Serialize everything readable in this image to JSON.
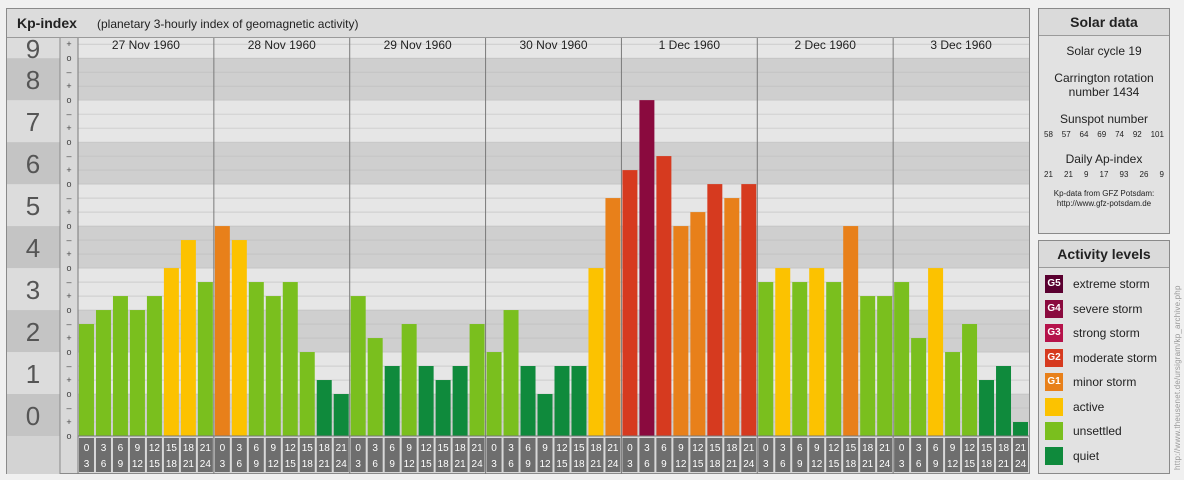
{
  "header": {
    "title": "Kp-index",
    "subtitle": "(planetary 3-hourly index of geomagnetic activity)"
  },
  "chart_data": {
    "type": "bar",
    "ylim": [
      0,
      9
    ],
    "y_tick_labels": [
      "0",
      "1",
      "2",
      "3",
      "4",
      "5",
      "6",
      "7",
      "8",
      "9"
    ],
    "thirds_marks": [
      "o",
      "+",
      "–"
    ],
    "days": [
      {
        "date": "27 Nov 1960",
        "kp": [
          2.667,
          3.0,
          3.333,
          3.0,
          3.333,
          4.0,
          4.667,
          3.667
        ]
      },
      {
        "date": "28 Nov 1960",
        "kp": [
          5.0,
          4.667,
          3.667,
          3.333,
          3.667,
          2.0,
          1.333,
          1.0
        ]
      },
      {
        "date": "29 Nov 1960",
        "kp": [
          3.333,
          2.333,
          1.667,
          2.667,
          1.667,
          1.333,
          1.667,
          2.667
        ]
      },
      {
        "date": "30 Nov 1960",
        "kp": [
          2.0,
          3.0,
          1.667,
          1.0,
          1.667,
          1.667,
          4.0,
          5.667
        ]
      },
      {
        "date": "1 Dec 1960",
        "kp": [
          6.333,
          8.0,
          6.667,
          5.0,
          5.333,
          6.0,
          5.667,
          6.0
        ]
      },
      {
        "date": "2 Dec 1960",
        "kp": [
          3.667,
          4.0,
          3.667,
          4.0,
          3.667,
          5.0,
          3.333,
          3.333
        ]
      },
      {
        "date": "3 Dec 1960",
        "kp": [
          3.667,
          2.333,
          4.0,
          2.0,
          2.667,
          1.333,
          1.667,
          0.333
        ]
      }
    ],
    "hour_labels_top": [
      "0",
      "3",
      "6",
      "9",
      "12",
      "15",
      "18",
      "21"
    ],
    "hour_labels_bottom": [
      "3",
      "6",
      "9",
      "12",
      "15",
      "18",
      "21",
      "24"
    ],
    "colors": {
      "quiet": "#0f8a3c",
      "unsettled": "#7abf1e",
      "active": "#fcc200",
      "minor_storm": "#e8801a",
      "moderate_storm": "#d63a1f",
      "strong_storm": "#b5124a",
      "severe_storm": "#8a0a3e",
      "extreme_storm": "#5a0030"
    }
  },
  "solar": {
    "title": "Solar data",
    "cycle": "Solar cycle 19",
    "carrington_line1": "Carrington rotation",
    "carrington_line2": "number 1434",
    "sunspot_title": "Sunspot number",
    "sunspot_values": [
      "58",
      "57",
      "64",
      "69",
      "74",
      "92",
      "101"
    ],
    "ap_title": "Daily Ap-index",
    "ap_values": [
      "21",
      "21",
      "9",
      "17",
      "93",
      "26",
      "9"
    ],
    "source_line1": "Kp-data from GFZ Potsdam:",
    "source_line2": "http://www.gfz-potsdam.de"
  },
  "levels": {
    "title": "Activity levels",
    "items": [
      {
        "badge": "G5",
        "label": "extreme storm",
        "color": "#5a0030"
      },
      {
        "badge": "G4",
        "label": "severe storm",
        "color": "#8a0a3e"
      },
      {
        "badge": "G3",
        "label": "strong storm",
        "color": "#b5124a"
      },
      {
        "badge": "G2",
        "label": "moderate storm",
        "color": "#d63a1f"
      },
      {
        "badge": "G1",
        "label": "minor storm",
        "color": "#e8801a"
      },
      {
        "badge": "",
        "label": "active",
        "color": "#fcc200"
      },
      {
        "badge": "",
        "label": "unsettled",
        "color": "#7abf1e"
      },
      {
        "badge": "",
        "label": "quiet",
        "color": "#0f8a3c"
      }
    ]
  },
  "credit": "http://www.theusenet.de/ursigram/kp_archive.php"
}
